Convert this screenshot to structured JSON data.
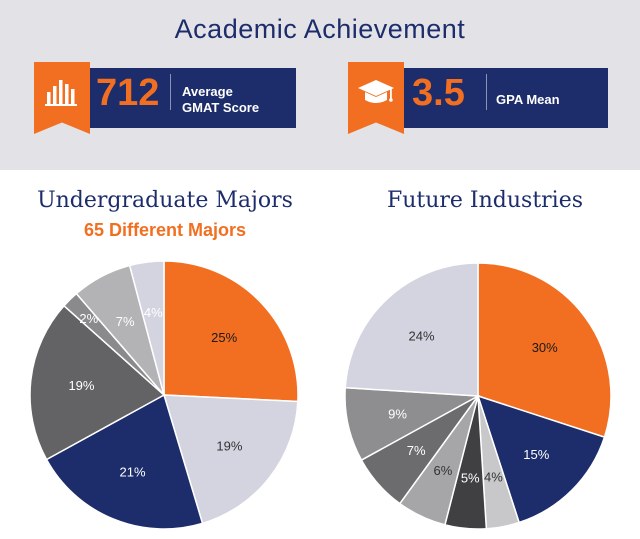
{
  "header": {
    "title": "Academic Achievement"
  },
  "stats": {
    "gmat": {
      "value": "712",
      "label_line1": "Average",
      "label_line2": "GMAT Score",
      "icon": "bar-chart-icon"
    },
    "gpa": {
      "value": "3.5",
      "label_line1": "GPA Mean",
      "icon": "graduation-cap-icon"
    }
  },
  "colors": {
    "navy": "#1d2d6b",
    "orange": "#f26f21",
    "panel": "#e3e3e7"
  },
  "chart_data": [
    {
      "type": "pie",
      "title": "Undergraduate Majors",
      "subtitle": "65 Different Majors",
      "values": [
        25,
        19,
        21,
        19,
        2,
        7,
        4
      ],
      "labels": [
        "25%",
        "19%",
        "21%",
        "19%",
        "2%",
        "7%",
        "4%"
      ],
      "colors": [
        "#f26f21",
        "#d3d4e0",
        "#1d2d6b",
        "#636365",
        "#8a8a8c",
        "#b3b3b5",
        "#d3d4e0"
      ],
      "label_colors": [
        "#1a1a1a",
        "#333333",
        "#ffffff",
        "#ffffff",
        "#ffffff",
        "#ffffff",
        "#ffffff"
      ],
      "start_angle_deg": 0,
      "direction": "clockwise"
    },
    {
      "type": "pie",
      "title": "Future Industries",
      "values": [
        30,
        15,
        4,
        5,
        6,
        7,
        9,
        24
      ],
      "labels": [
        "30%",
        "15%",
        "4%",
        "5%",
        "6%",
        "7%",
        "9%",
        "24%"
      ],
      "colors": [
        "#f26f21",
        "#1d2d6b",
        "#c8c8ca",
        "#404042",
        "#a6a6a8",
        "#6c6c6e",
        "#8e8e90",
        "#d3d4e0"
      ],
      "label_colors": [
        "#1a1a1a",
        "#ffffff",
        "#333333",
        "#ffffff",
        "#333333",
        "#ffffff",
        "#ffffff",
        "#333333"
      ],
      "start_angle_deg": 0,
      "direction": "clockwise"
    }
  ]
}
